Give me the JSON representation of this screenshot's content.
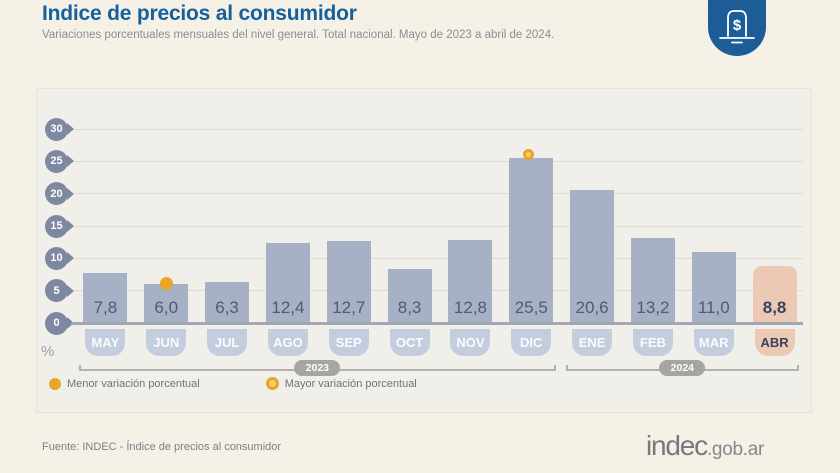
{
  "header": {
    "title": "Indice de precios al consumidor",
    "subtitle": "Variaciones porcentuales mensuales del nivel general. Total nacional. Mayo de 2023 a abril de 2024."
  },
  "chart_data": {
    "type": "bar",
    "title": "Indice de precios al consumidor",
    "categories": [
      "MAY",
      "JUN",
      "JUL",
      "AGO",
      "SEP",
      "OCT",
      "NOV",
      "DIC",
      "ENE",
      "FEB",
      "MAR",
      "ABR"
    ],
    "values": [
      7.8,
      6.0,
      6.3,
      12.4,
      12.7,
      8.3,
      12.8,
      25.5,
      20.6,
      13.2,
      11.0,
      8.8
    ],
    "value_labels": [
      "7,8",
      "6,0",
      "6,3",
      "12,4",
      "12,7",
      "8,3",
      "12,8",
      "25,5",
      "20,6",
      "13,2",
      "11,0",
      "8,8"
    ],
    "ylabel": "%",
    "ylim": [
      0,
      30
    ],
    "yticks": [
      0,
      5,
      10,
      15,
      20,
      25,
      30
    ],
    "grid": true,
    "min_marker": {
      "category_index": 1,
      "style": "solid-dot"
    },
    "max_marker": {
      "category_index": 7,
      "style": "ring-dot"
    },
    "highlight_index": 11,
    "year_groups": [
      {
        "label": "2023",
        "from_index": 0,
        "to_index": 7
      },
      {
        "label": "2024",
        "from_index": 8,
        "to_index": 11
      }
    ],
    "colors": {
      "bar": "#a6b1c6",
      "bar_highlight": "#ecc9b4",
      "value_text": "#4d5a78",
      "value_text_highlight": "#3a4263",
      "month_badge": "#c4cdde",
      "month_text": "#fbfbfd",
      "month_badge_highlight": "#ecc9b4",
      "month_text_highlight": "#3a4263",
      "marker_yellow": "#e9a42a",
      "marker_ring_fill": "#f6d06a"
    }
  },
  "legend": [
    {
      "style": "solid-dot",
      "label": "Menor variación porcentual"
    },
    {
      "style": "ring-dot",
      "label": "Mayor variación porcentual"
    }
  ],
  "footer": {
    "source": "Fuente: INDEC - Índice de precios al consumidor",
    "brand": "indec",
    "brand_suffix": ".gob.ar"
  },
  "logo": {
    "symbol": "$",
    "color": "#1c5d98"
  }
}
